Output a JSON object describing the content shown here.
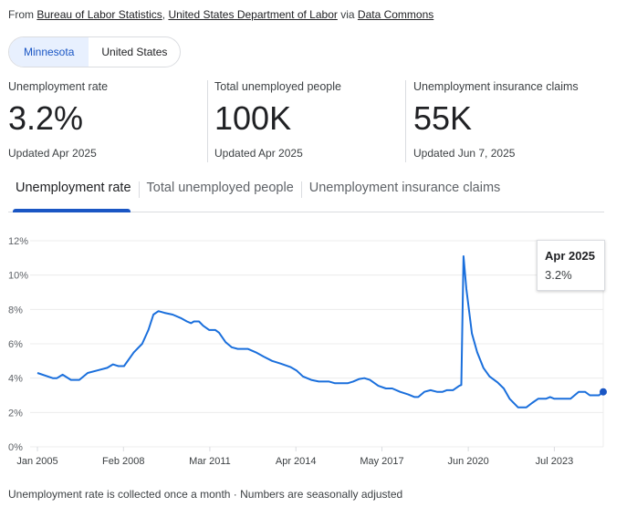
{
  "source": {
    "prefix": "From",
    "links": [
      "Bureau of Labor Statistics",
      "United States Department of Labor",
      "Data Commons"
    ],
    "via": "via"
  },
  "place_toggle": {
    "options": [
      "Minnesota",
      "United States"
    ],
    "selected": "Minnesota"
  },
  "stats": [
    {
      "label": "Unemployment rate",
      "value": "3.2%",
      "updated": "Updated Apr 2025"
    },
    {
      "label": "Total unemployed people",
      "value": "100K",
      "updated": "Updated Apr 2025"
    },
    {
      "label": "Unemployment insurance claims",
      "value": "55K",
      "updated": "Updated Jun 7, 2025"
    }
  ],
  "tabs": [
    "Unemployment rate",
    "Total unemployed people",
    "Unemployment insurance claims"
  ],
  "tooltip": {
    "date": "Apr 2025",
    "value": "3.2%"
  },
  "footnote": "Unemployment rate is collected once a month · Numbers are seasonally adjusted",
  "colors": {
    "line": "#1a6fdc",
    "accent": "#1a56c4"
  },
  "chart_data": {
    "type": "line",
    "title": "Unemployment rate",
    "xlabel": "",
    "ylabel": "",
    "ylim": [
      0,
      12
    ],
    "yticks": [
      "0%",
      "2%",
      "4%",
      "6%",
      "8%",
      "10%",
      "12%"
    ],
    "xlim": [
      2005.0,
      2025.25
    ],
    "xticks": [
      {
        "x": 2005.0,
        "label": "Jan 2005"
      },
      {
        "x": 2008.08,
        "label": "Feb 2008"
      },
      {
        "x": 2011.17,
        "label": "Mar 2011"
      },
      {
        "x": 2014.25,
        "label": "Apr 2014"
      },
      {
        "x": 2017.33,
        "label": "May 2017"
      },
      {
        "x": 2020.42,
        "label": "Jun 2020"
      },
      {
        "x": 2023.5,
        "label": "Jul 2023"
      }
    ],
    "grid": true,
    "series": [
      {
        "name": "Minnesota",
        "points": [
          [
            2005.0,
            4.3
          ],
          [
            2005.55,
            4.0
          ],
          [
            2005.7,
            4.0
          ],
          [
            2005.9,
            4.2
          ],
          [
            2006.2,
            3.9
          ],
          [
            2006.5,
            3.9
          ],
          [
            2006.8,
            4.3
          ],
          [
            2007.15,
            4.45
          ],
          [
            2007.5,
            4.6
          ],
          [
            2007.7,
            4.8
          ],
          [
            2007.9,
            4.7
          ],
          [
            2008.1,
            4.7
          ],
          [
            2008.45,
            5.5
          ],
          [
            2008.75,
            6.0
          ],
          [
            2008.97,
            6.8
          ],
          [
            2009.15,
            7.7
          ],
          [
            2009.33,
            7.9
          ],
          [
            2009.55,
            7.8
          ],
          [
            2009.84,
            7.7
          ],
          [
            2010.13,
            7.5
          ],
          [
            2010.35,
            7.3
          ],
          [
            2010.5,
            7.2
          ],
          [
            2010.6,
            7.3
          ],
          [
            2010.78,
            7.3
          ],
          [
            2010.93,
            7.05
          ],
          [
            2011.15,
            6.8
          ],
          [
            2011.37,
            6.8
          ],
          [
            2011.5,
            6.65
          ],
          [
            2011.73,
            6.1
          ],
          [
            2011.95,
            5.8
          ],
          [
            2012.17,
            5.7
          ],
          [
            2012.53,
            5.7
          ],
          [
            2012.82,
            5.5
          ],
          [
            2013.1,
            5.25
          ],
          [
            2013.4,
            5.0
          ],
          [
            2013.7,
            4.85
          ],
          [
            2014.05,
            4.65
          ],
          [
            2014.27,
            4.45
          ],
          [
            2014.5,
            4.1
          ],
          [
            2014.8,
            3.9
          ],
          [
            2015.07,
            3.8
          ],
          [
            2015.44,
            3.8
          ],
          [
            2015.65,
            3.7
          ],
          [
            2016.1,
            3.7
          ],
          [
            2016.3,
            3.8
          ],
          [
            2016.52,
            3.95
          ],
          [
            2016.7,
            4.0
          ],
          [
            2016.9,
            3.9
          ],
          [
            2017.2,
            3.55
          ],
          [
            2017.47,
            3.4
          ],
          [
            2017.7,
            3.4
          ],
          [
            2017.98,
            3.2
          ],
          [
            2018.27,
            3.05
          ],
          [
            2018.5,
            2.9
          ],
          [
            2018.63,
            2.9
          ],
          [
            2018.85,
            3.2
          ],
          [
            2019.07,
            3.3
          ],
          [
            2019.3,
            3.2
          ],
          [
            2019.5,
            3.2
          ],
          [
            2019.65,
            3.3
          ],
          [
            2019.87,
            3.3
          ],
          [
            2020.1,
            3.55
          ],
          [
            2020.17,
            3.6
          ],
          [
            2020.25,
            11.1
          ],
          [
            2020.35,
            9.2
          ],
          [
            2020.55,
            6.6
          ],
          [
            2020.74,
            5.5
          ],
          [
            2020.96,
            4.6
          ],
          [
            2021.18,
            4.1
          ],
          [
            2021.47,
            3.75
          ],
          [
            2021.69,
            3.4
          ],
          [
            2021.9,
            2.8
          ],
          [
            2022.2,
            2.3
          ],
          [
            2022.5,
            2.3
          ],
          [
            2022.7,
            2.55
          ],
          [
            2022.92,
            2.8
          ],
          [
            2023.2,
            2.8
          ],
          [
            2023.35,
            2.9
          ],
          [
            2023.5,
            2.8
          ],
          [
            2024.08,
            2.8
          ],
          [
            2024.37,
            3.2
          ],
          [
            2024.6,
            3.2
          ],
          [
            2024.77,
            3.0
          ],
          [
            2025.1,
            3.0
          ],
          [
            2025.25,
            3.2
          ]
        ]
      }
    ]
  }
}
